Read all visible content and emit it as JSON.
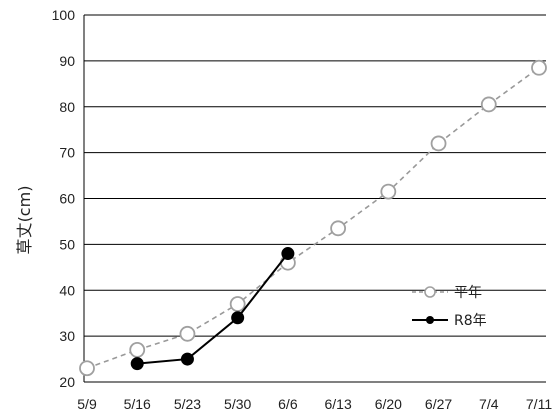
{
  "chart_data": {
    "type": "line",
    "ylabel": "草丈(cm)",
    "xlabel": "",
    "ylim": [
      20,
      100
    ],
    "yticks": [
      20,
      30,
      40,
      50,
      60,
      70,
      80,
      90,
      100
    ],
    "categories": [
      "5/9",
      "5/16",
      "5/23",
      "5/30",
      "6/6",
      "6/13",
      "6/20",
      "6/27",
      "7/4",
      "7/11"
    ],
    "grid": {
      "horizontal": true
    },
    "legend": "right",
    "series": [
      {
        "name": "平年",
        "style": "dashed-open-circle",
        "color": "#9a9a9a",
        "values": [
          23,
          27,
          30.5,
          37,
          46,
          53.5,
          61.5,
          72,
          80.5,
          88.5
        ]
      },
      {
        "name": "R8年",
        "style": "solid-filled-circle",
        "color": "#000000",
        "values": [
          null,
          24,
          25,
          34,
          48,
          null,
          null,
          null,
          null,
          null
        ]
      }
    ]
  }
}
